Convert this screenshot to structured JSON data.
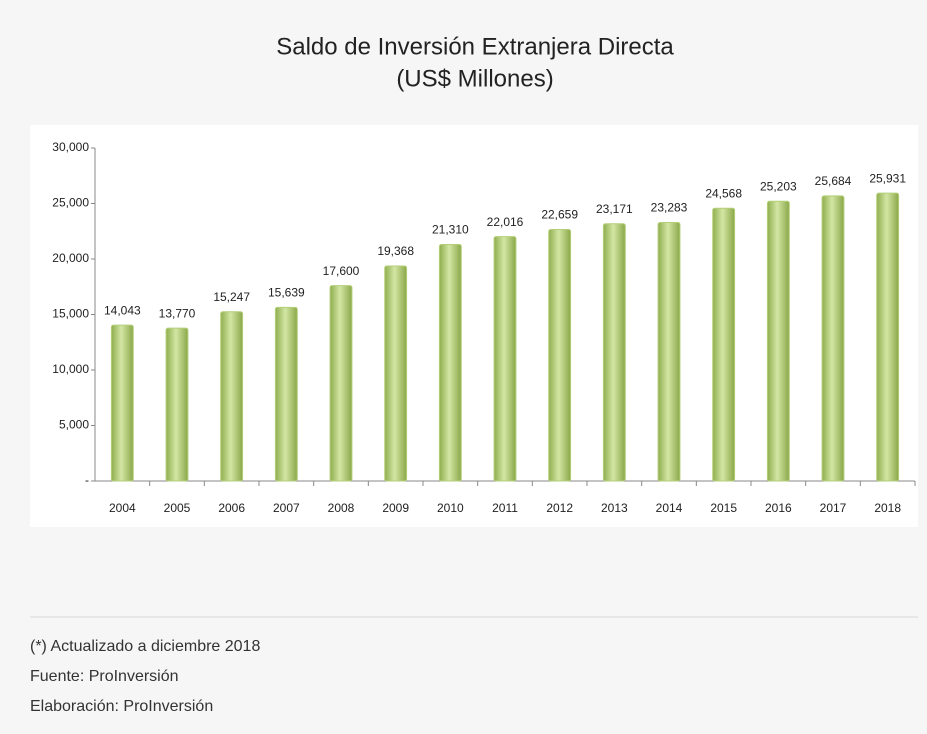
{
  "chart_data": {
    "type": "bar",
    "title": "Saldo de Inversión Extranjera Directa",
    "subtitle": "(US$ Millones)",
    "categories": [
      "2004",
      "2005",
      "2006",
      "2007",
      "2008",
      "2009",
      "2010",
      "2011",
      "2012",
      "2013",
      "2014",
      "2015",
      "2016",
      "2017",
      "2018"
    ],
    "values": [
      14043,
      13770,
      15247,
      15639,
      17600,
      19368,
      21310,
      22016,
      22659,
      23171,
      23283,
      24568,
      25203,
      25684,
      25931
    ],
    "value_labels": [
      "14,043",
      "13,770",
      "15,247",
      "15,639",
      "17,600",
      "19,368",
      "21,310",
      "22,016",
      "22,659",
      "23,171",
      "23,283",
      "24,568",
      "25,203",
      "25,684",
      "25,931"
    ],
    "color": "#b4cf78",
    "ylim": [
      0,
      30000
    ],
    "yticks": [
      {
        "value": 0,
        "label": "-"
      },
      {
        "value": 5000,
        "label": "5,000"
      },
      {
        "value": 10000,
        "label": "10,000"
      },
      {
        "value": 15000,
        "label": "15,000"
      },
      {
        "value": 20000,
        "label": "20,000"
      },
      {
        "value": 25000,
        "label": "25,000"
      },
      {
        "value": 30000,
        "label": "30,000"
      }
    ],
    "grid": false,
    "notes": [
      "(*) Actualizado a diciembre 2018",
      "Fuente: ProInversión",
      "Elaboración: ProInversión"
    ]
  }
}
